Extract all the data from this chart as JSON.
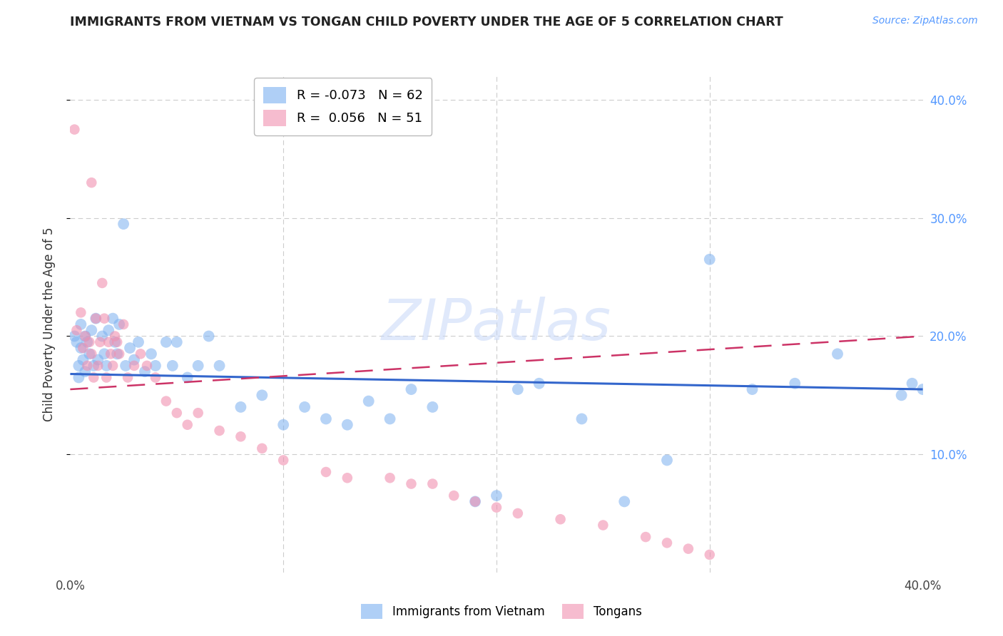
{
  "title": "IMMIGRANTS FROM VIETNAM VS TONGAN CHILD POVERTY UNDER THE AGE OF 5 CORRELATION CHART",
  "source": "Source: ZipAtlas.com",
  "ylabel": "Child Poverty Under the Age of 5",
  "xlim": [
    0.0,
    0.4
  ],
  "ylim": [
    0.0,
    0.42
  ],
  "grid_color": "#cccccc",
  "background_color": "#ffffff",
  "watermark": "ZIPatlas",
  "legend_R1": "-0.073",
  "legend_N1": "62",
  "legend_R2": "0.056",
  "legend_N2": "51",
  "blue_color": "#7aaff0",
  "pink_color": "#f090b0",
  "line_blue_color": "#3366cc",
  "line_pink_color": "#cc3366",
  "right_tick_color": "#5599ff",
  "line_blue_x0": 0.0,
  "line_blue_y0": 0.168,
  "line_blue_x1": 0.4,
  "line_blue_y1": 0.155,
  "line_pink_x0": 0.0,
  "line_pink_y0": 0.155,
  "line_pink_x1": 0.4,
  "line_pink_y1": 0.2,
  "vietnam_x": [
    0.002,
    0.003,
    0.004,
    0.004,
    0.005,
    0.005,
    0.006,
    0.007,
    0.007,
    0.008,
    0.009,
    0.01,
    0.011,
    0.012,
    0.013,
    0.015,
    0.016,
    0.017,
    0.018,
    0.02,
    0.021,
    0.022,
    0.023,
    0.025,
    0.026,
    0.028,
    0.03,
    0.032,
    0.035,
    0.038,
    0.04,
    0.045,
    0.048,
    0.05,
    0.055,
    0.06,
    0.065,
    0.07,
    0.08,
    0.09,
    0.1,
    0.11,
    0.12,
    0.13,
    0.14,
    0.15,
    0.16,
    0.17,
    0.19,
    0.2,
    0.21,
    0.22,
    0.24,
    0.26,
    0.28,
    0.3,
    0.32,
    0.34,
    0.36,
    0.39,
    0.395,
    0.4
  ],
  "vietnam_y": [
    0.2,
    0.195,
    0.175,
    0.165,
    0.21,
    0.19,
    0.18,
    0.2,
    0.17,
    0.195,
    0.185,
    0.205,
    0.175,
    0.215,
    0.18,
    0.2,
    0.185,
    0.175,
    0.205,
    0.215,
    0.195,
    0.185,
    0.21,
    0.295,
    0.175,
    0.19,
    0.18,
    0.195,
    0.17,
    0.185,
    0.175,
    0.195,
    0.175,
    0.195,
    0.165,
    0.175,
    0.2,
    0.175,
    0.14,
    0.15,
    0.125,
    0.14,
    0.13,
    0.125,
    0.145,
    0.13,
    0.155,
    0.14,
    0.06,
    0.065,
    0.155,
    0.16,
    0.13,
    0.06,
    0.095,
    0.265,
    0.155,
    0.16,
    0.185,
    0.15,
    0.16,
    0.155
  ],
  "tongan_x": [
    0.002,
    0.003,
    0.005,
    0.006,
    0.007,
    0.008,
    0.009,
    0.01,
    0.011,
    0.012,
    0.013,
    0.014,
    0.015,
    0.016,
    0.017,
    0.018,
    0.019,
    0.02,
    0.021,
    0.022,
    0.023,
    0.025,
    0.027,
    0.03,
    0.033,
    0.036,
    0.04,
    0.045,
    0.05,
    0.055,
    0.06,
    0.07,
    0.08,
    0.09,
    0.1,
    0.12,
    0.13,
    0.15,
    0.16,
    0.17,
    0.18,
    0.19,
    0.2,
    0.21,
    0.23,
    0.25,
    0.27,
    0.28,
    0.29,
    0.3,
    0.01
  ],
  "tongan_y": [
    0.375,
    0.205,
    0.22,
    0.19,
    0.2,
    0.175,
    0.195,
    0.185,
    0.165,
    0.215,
    0.175,
    0.195,
    0.245,
    0.215,
    0.165,
    0.195,
    0.185,
    0.175,
    0.2,
    0.195,
    0.185,
    0.21,
    0.165,
    0.175,
    0.185,
    0.175,
    0.165,
    0.145,
    0.135,
    0.125,
    0.135,
    0.12,
    0.115,
    0.105,
    0.095,
    0.085,
    0.08,
    0.08,
    0.075,
    0.075,
    0.065,
    0.06,
    0.055,
    0.05,
    0.045,
    0.04,
    0.03,
    0.025,
    0.02,
    0.015,
    0.33
  ]
}
